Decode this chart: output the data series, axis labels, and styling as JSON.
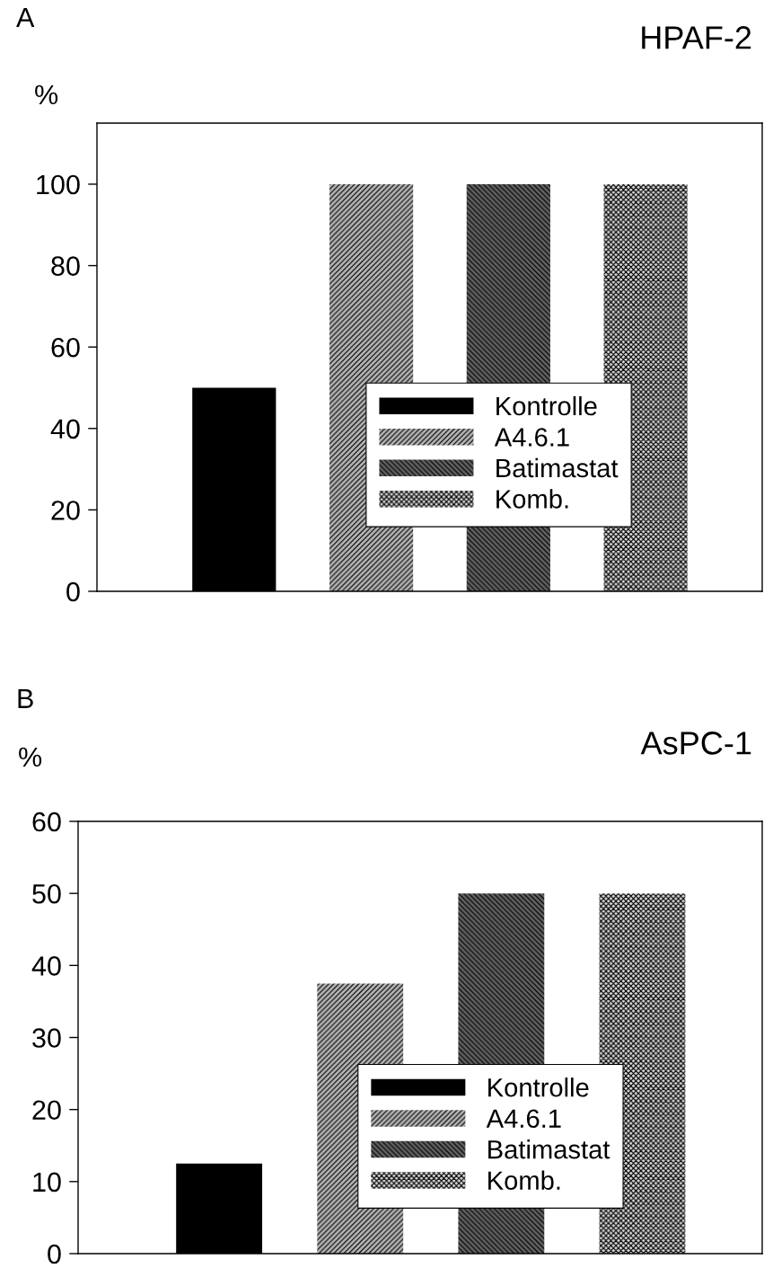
{
  "chart_data": [
    {
      "type": "bar",
      "title": "HPAF-2",
      "ylabel": "%",
      "annotations": [
        "A"
      ],
      "categories": [
        null,
        null,
        null,
        null
      ],
      "ylim": [
        0,
        115
      ],
      "yticks": [
        0,
        20,
        40,
        60,
        80,
        100
      ],
      "tick_labels": "y",
      "grid": false,
      "legend": "bottom",
      "series": [
        {
          "name": "Kontrolle",
          "color": "#000000",
          "values": [
            50,
            null,
            null,
            null
          ]
        },
        {
          "name": "A4.6.1",
          "color": "#b4b4b4",
          "values": [
            null,
            100,
            null,
            null
          ]
        },
        {
          "name": "Batimastat",
          "color": "#606060",
          "values": [
            null,
            null,
            100,
            null
          ]
        },
        {
          "name": "Komb.",
          "color": "#d8d8d8",
          "values": [
            null,
            null,
            null,
            100
          ]
        }
      ]
    },
    {
      "type": "bar",
      "title": "AsPC-1",
      "ylabel": "%",
      "annotations": [
        "B"
      ],
      "categories": [
        null,
        null,
        null,
        null
      ],
      "ylim": [
        0,
        60
      ],
      "yticks": [
        0,
        10,
        20,
        30,
        40,
        50,
        60
      ],
      "tick_labels": "y",
      "grid": false,
      "legend": "bottom",
      "series": [
        {
          "name": "Kontrolle",
          "color": "#000000",
          "values": [
            12.5,
            null,
            null,
            null
          ]
        },
        {
          "name": "A4.6.1",
          "color": "#b4b4b4",
          "values": [
            null,
            37.5,
            null,
            null
          ]
        },
        {
          "name": "Batimastat",
          "color": "#606060",
          "values": [
            null,
            null,
            50,
            null
          ]
        },
        {
          "name": "Komb.",
          "color": "#d8d8d8",
          "values": [
            null,
            null,
            null,
            50
          ]
        }
      ]
    }
  ]
}
